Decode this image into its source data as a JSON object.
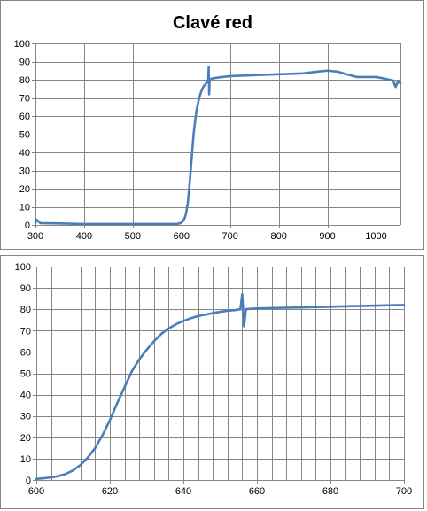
{
  "chart_data": [
    {
      "type": "line",
      "title": "Clavé red",
      "xlim": [
        300,
        1050
      ],
      "ylim": [
        0,
        100
      ],
      "xticks": [
        300,
        400,
        500,
        600,
        700,
        800,
        900,
        1000
      ],
      "yticks": [
        0,
        10,
        20,
        30,
        40,
        50,
        60,
        70,
        80,
        90,
        100
      ],
      "x_minor_step": 0,
      "grid": true,
      "series_color": "#4a7ebb",
      "series": [
        {
          "x": [
            300,
            302,
            310,
            350,
            400,
            450,
            500,
            550,
            590,
            598,
            603,
            607,
            610,
            613,
            616,
            619,
            622,
            625,
            628,
            631,
            634,
            637,
            640,
            643,
            646,
            649,
            652,
            655,
            656,
            657,
            658,
            660,
            670,
            700,
            750,
            800,
            850,
            880,
            900,
            920,
            940,
            960,
            980,
            1000,
            1020,
            1035,
            1040,
            1045,
            1050
          ],
          "y": [
            1,
            3,
            1,
            0.8,
            0.5,
            0.5,
            0.5,
            0.5,
            0.5,
            1,
            2,
            4,
            7,
            12,
            20,
            30,
            40,
            50,
            57,
            63,
            67,
            70.5,
            73,
            75,
            76.5,
            77.5,
            78.5,
            79.5,
            87,
            72,
            80,
            80.5,
            81,
            82,
            82.5,
            83,
            83.5,
            84.5,
            85,
            84.5,
            83,
            81.5,
            81.5,
            81.5,
            80.5,
            79.5,
            76,
            79,
            78
          ]
        }
      ]
    },
    {
      "type": "line",
      "title": "",
      "xlim": [
        600,
        700
      ],
      "ylim": [
        0,
        100
      ],
      "xticks": [
        600,
        620,
        640,
        660,
        680,
        700
      ],
      "yticks": [
        0,
        10,
        20,
        30,
        40,
        50,
        60,
        70,
        80,
        90,
        100
      ],
      "x_minor_step": 4,
      "grid": true,
      "series_color": "#4a7ebb",
      "series": [
        {
          "x": [
            600,
            602,
            604,
            606,
            608,
            610,
            612,
            614,
            616,
            618,
            620,
            622,
            624,
            626,
            628,
            630,
            632,
            634,
            636,
            638,
            640,
            642,
            644,
            646,
            648,
            650,
            652,
            654,
            655.5,
            656,
            656.5,
            657,
            658,
            660,
            665,
            670,
            675,
            680,
            685,
            690,
            695,
            700
          ],
          "y": [
            0.5,
            0.8,
            1.2,
            1.8,
            2.8,
            4.5,
            7,
            10.5,
            15,
            21,
            28,
            36,
            43.5,
            51,
            56.5,
            61,
            65,
            68.5,
            71,
            73,
            74.5,
            75.8,
            76.8,
            77.5,
            78.2,
            78.8,
            79.3,
            79.6,
            80,
            87,
            72,
            80,
            80.2,
            80.4,
            80.6,
            80.8,
            81,
            81.2,
            81.4,
            81.6,
            81.8,
            82
          ]
        }
      ]
    }
  ]
}
